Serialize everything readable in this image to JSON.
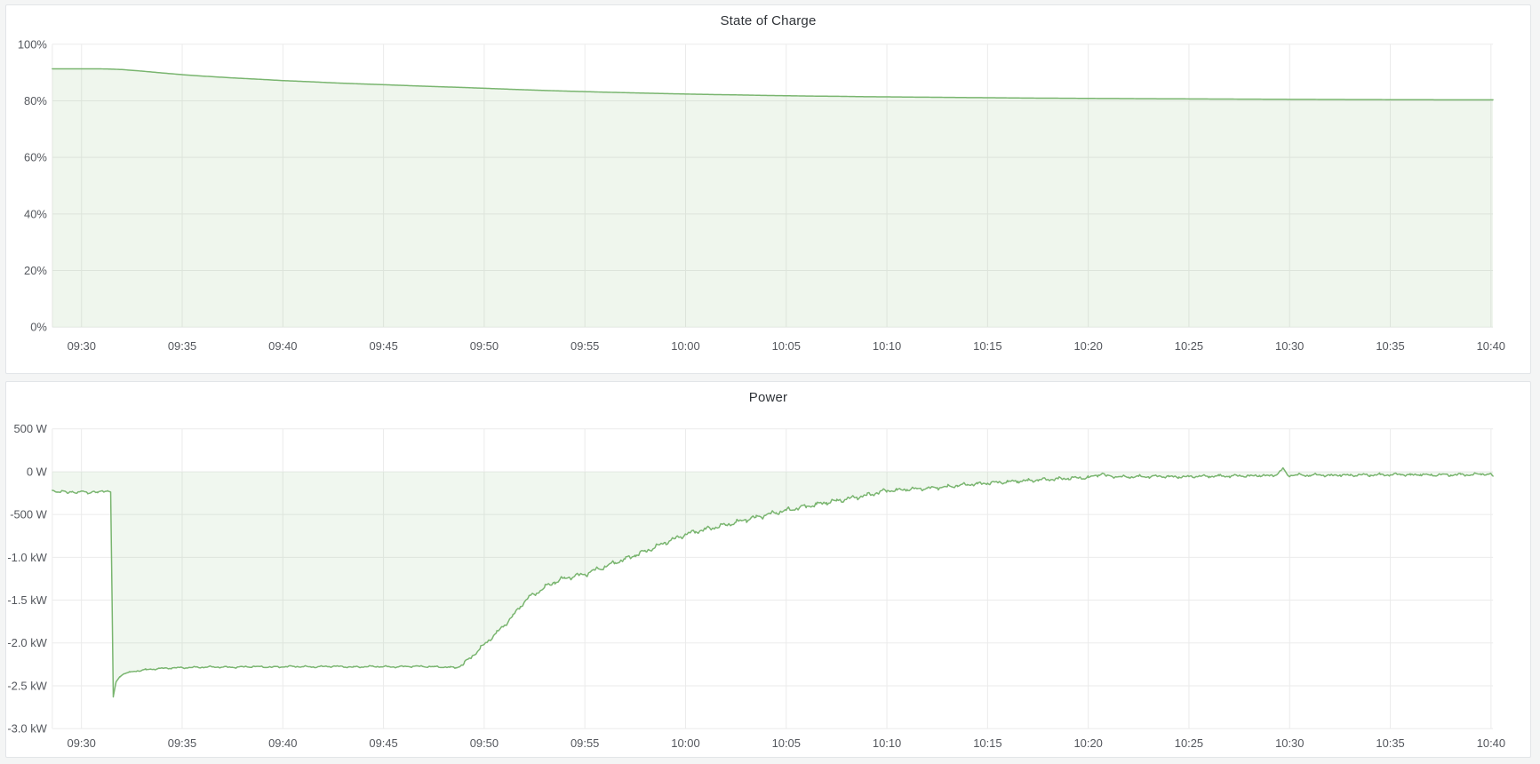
{
  "page": {
    "background_color": "#f4f5f5",
    "panel_background": "#ffffff",
    "grid_color": "#ebebeb",
    "tick_text_color": "#54575d",
    "title_text_color": "#2f3338"
  },
  "chart_data": [
    {
      "type": "area",
      "title": "State of Charge",
      "legend_position": "none",
      "grid": true,
      "x": {
        "unit": "time",
        "domain_minutes": [
          -1.45,
          70.1
        ],
        "tick_minutes": [
          0,
          5,
          10,
          15,
          20,
          25,
          30,
          35,
          40,
          45,
          50,
          55,
          60,
          65,
          70
        ],
        "tick_labels": [
          "09:30",
          "09:35",
          "09:40",
          "09:45",
          "09:50",
          "09:55",
          "10:00",
          "10:05",
          "10:10",
          "10:15",
          "10:20",
          "10:25",
          "10:30",
          "10:35",
          "10:40"
        ]
      },
      "y": {
        "unit": "percent",
        "ylim": [
          0,
          100
        ],
        "ticks": [
          {
            "value": 100,
            "label": "100%"
          },
          {
            "value": 80,
            "label": "80%"
          },
          {
            "value": 60,
            "label": "60%"
          },
          {
            "value": 40,
            "label": "40%"
          },
          {
            "value": 20,
            "label": "20%"
          },
          {
            "value": 0,
            "label": "0%"
          }
        ]
      },
      "series": [
        {
          "name": "State of Charge",
          "color": "#79b56f",
          "fill_color": "rgba(120,181,110,0.12)",
          "baseline_value": 0,
          "points": [
            [
              -1.45,
              91.3
            ],
            [
              0,
              91.3
            ],
            [
              0.8,
              91.3
            ],
            [
              1.3,
              91.25
            ],
            [
              2,
              91.05
            ],
            [
              3,
              90.5
            ],
            [
              4,
              89.85
            ],
            [
              5,
              89.25
            ],
            [
              6,
              88.75
            ],
            [
              7.5,
              88.1
            ],
            [
              9,
              87.55
            ],
            [
              10,
              87.15
            ],
            [
              11.5,
              86.7
            ],
            [
              12.5,
              86.35
            ],
            [
              14,
              85.95
            ],
            [
              15,
              85.7
            ],
            [
              16.5,
              85.3
            ],
            [
              17.5,
              85.05
            ],
            [
              19,
              84.7
            ],
            [
              20.5,
              84.3
            ],
            [
              22,
              83.9
            ],
            [
              23.5,
              83.55
            ],
            [
              25,
              83.25
            ],
            [
              26,
              83.05
            ],
            [
              27.5,
              82.8
            ],
            [
              29,
              82.55
            ],
            [
              30,
              82.4
            ],
            [
              31.5,
              82.2
            ],
            [
              32.5,
              82.1
            ],
            [
              34,
              81.9
            ],
            [
              35,
              81.8
            ],
            [
              36.5,
              81.65
            ],
            [
              37.5,
              81.6
            ],
            [
              39,
              81.45
            ],
            [
              40,
              81.4
            ],
            [
              41.5,
              81.3
            ],
            [
              42.5,
              81.25
            ],
            [
              44,
              81.15
            ],
            [
              45,
              81.1
            ],
            [
              46.5,
              81.0
            ],
            [
              47.5,
              80.95
            ],
            [
              49,
              80.9
            ],
            [
              50,
              80.85
            ],
            [
              51.5,
              80.8
            ],
            [
              52.5,
              80.75
            ],
            [
              54,
              80.7
            ],
            [
              55,
              80.68
            ],
            [
              56.5,
              80.62
            ],
            [
              57.5,
              80.6
            ],
            [
              59,
              80.55
            ],
            [
              60,
              80.52
            ],
            [
              61.5,
              80.48
            ],
            [
              62.5,
              80.45
            ],
            [
              64,
              80.42
            ],
            [
              65,
              80.4
            ],
            [
              66.5,
              80.38
            ],
            [
              67.5,
              80.36
            ],
            [
              69,
              80.34
            ],
            [
              70.1,
              80.33
            ]
          ],
          "noise_segments": []
        }
      ]
    },
    {
      "type": "area",
      "title": "Power",
      "legend_position": "none",
      "grid": true,
      "x": {
        "unit": "time",
        "domain_minutes": [
          -1.45,
          70.1
        ],
        "tick_minutes": [
          0,
          5,
          10,
          15,
          20,
          25,
          30,
          35,
          40,
          45,
          50,
          55,
          60,
          65,
          70
        ],
        "tick_labels": [
          "09:30",
          "09:35",
          "09:40",
          "09:45",
          "09:50",
          "09:55",
          "10:00",
          "10:05",
          "10:10",
          "10:15",
          "10:20",
          "10:25",
          "10:30",
          "10:35",
          "10:40"
        ]
      },
      "y": {
        "unit": "watts",
        "ylim": [
          -3000,
          500
        ],
        "ticks": [
          {
            "value": 500,
            "label": "500 W"
          },
          {
            "value": 0,
            "label": "0 W"
          },
          {
            "value": -500,
            "label": "-500 W"
          },
          {
            "value": -1000,
            "label": "-1.0 kW"
          },
          {
            "value": -1500,
            "label": "-1.5 kW"
          },
          {
            "value": -2000,
            "label": "-2.0 kW"
          },
          {
            "value": -2500,
            "label": "-2.5 kW"
          },
          {
            "value": -3000,
            "label": "-3.0 kW"
          }
        ]
      },
      "series": [
        {
          "name": "Power",
          "color": "#79b56f",
          "fill_color": "rgba(120,181,110,0.11)",
          "baseline_value": 0,
          "points": [
            [
              -1.45,
              -218
            ],
            [
              -1.2,
              -238
            ],
            [
              -0.95,
              -222
            ],
            [
              -0.7,
              -252
            ],
            [
              -0.45,
              -230
            ],
            [
              -0.2,
              -246
            ],
            [
              0.05,
              -228
            ],
            [
              0.3,
              -250
            ],
            [
              0.55,
              -232
            ],
            [
              0.8,
              -246
            ],
            [
              1.05,
              -226
            ],
            [
              1.3,
              -222
            ],
            [
              1.45,
              -238
            ],
            [
              1.52,
              -1500
            ],
            [
              1.58,
              -2630
            ],
            [
              1.72,
              -2455
            ],
            [
              1.9,
              -2395
            ],
            [
              2.1,
              -2360
            ],
            [
              2.4,
              -2340
            ],
            [
              2.8,
              -2325
            ],
            [
              3.2,
              -2312
            ],
            [
              3.8,
              -2300
            ],
            [
              4.5,
              -2292
            ],
            [
              5.5,
              -2286
            ],
            [
              6.5,
              -2280
            ],
            [
              7.5,
              -2284
            ],
            [
              8.5,
              -2276
            ],
            [
              9.5,
              -2282
            ],
            [
              10.5,
              -2274
            ],
            [
              11.5,
              -2280
            ],
            [
              12.5,
              -2272
            ],
            [
              13.5,
              -2282
            ],
            [
              14.5,
              -2274
            ],
            [
              15.5,
              -2280
            ],
            [
              16.5,
              -2272
            ],
            [
              17.5,
              -2278
            ],
            [
              18.3,
              -2284
            ],
            [
              18.6,
              -2288
            ],
            [
              19,
              -2240
            ],
            [
              19.4,
              -2155
            ],
            [
              19.8,
              -2065
            ],
            [
              20.2,
              -1975
            ],
            [
              20.6,
              -1885
            ],
            [
              21,
              -1795
            ],
            [
              21.4,
              -1690
            ],
            [
              21.8,
              -1575
            ],
            [
              22.2,
              -1465
            ],
            [
              22.6,
              -1420
            ],
            [
              23,
              -1350
            ],
            [
              23.5,
              -1290
            ],
            [
              24,
              -1245
            ],
            [
              24.5,
              -1218
            ],
            [
              25,
              -1198
            ],
            [
              25.5,
              -1150
            ],
            [
              26,
              -1110
            ],
            [
              26.5,
              -1062
            ],
            [
              27,
              -1020
            ],
            [
              27.5,
              -975
            ],
            [
              28,
              -930
            ],
            [
              28.5,
              -880
            ],
            [
              29,
              -828
            ],
            [
              29.5,
              -780
            ],
            [
              30,
              -732
            ],
            [
              30.5,
              -700
            ],
            [
              31,
              -672
            ],
            [
              31.5,
              -648
            ],
            [
              32,
              -622
            ],
            [
              32.5,
              -592
            ],
            [
              33,
              -560
            ],
            [
              33.5,
              -532
            ],
            [
              34,
              -505
            ],
            [
              34.5,
              -478
            ],
            [
              35,
              -452
            ],
            [
              35.5,
              -428
            ],
            [
              36,
              -405
            ],
            [
              36.5,
              -382
            ],
            [
              37,
              -360
            ],
            [
              37.5,
              -340
            ],
            [
              38,
              -320
            ],
            [
              38.5,
              -298
            ],
            [
              39,
              -276
            ],
            [
              39.5,
              -246
            ],
            [
              40,
              -222
            ],
            [
              40.5,
              -215
            ],
            [
              41,
              -208
            ],
            [
              41.5,
              -200
            ],
            [
              42,
              -194
            ],
            [
              42.5,
              -186
            ],
            [
              43,
              -176
            ],
            [
              43.5,
              -163
            ],
            [
              44,
              -150
            ],
            [
              44.5,
              -142
            ],
            [
              45,
              -134
            ],
            [
              45.5,
              -126
            ],
            [
              46,
              -118
            ],
            [
              46.5,
              -111
            ],
            [
              47,
              -104
            ],
            [
              47.5,
              -97
            ],
            [
              48,
              -90
            ],
            [
              48.5,
              -84
            ],
            [
              49,
              -78
            ],
            [
              49.5,
              -73
            ],
            [
              50,
              -68
            ],
            [
              50.5,
              -40
            ],
            [
              50.7,
              -18
            ],
            [
              50.9,
              -52
            ],
            [
              51.5,
              -58
            ],
            [
              52,
              -64
            ],
            [
              52.5,
              -55
            ],
            [
              53,
              -60
            ],
            [
              53.5,
              -52
            ],
            [
              54,
              -58
            ],
            [
              54.5,
              -62
            ],
            [
              55,
              -58
            ],
            [
              55.5,
              -52
            ],
            [
              56,
              -56
            ],
            [
              56.5,
              -48
            ],
            [
              57,
              -54
            ],
            [
              57.5,
              -46
            ],
            [
              58,
              -52
            ],
            [
              58.5,
              -44
            ],
            [
              59,
              -50
            ],
            [
              59.4,
              -28
            ],
            [
              59.65,
              38
            ],
            [
              59.9,
              -42
            ],
            [
              60.3,
              -38
            ],
            [
              61,
              -44
            ],
            [
              61.5,
              -36
            ],
            [
              62,
              -46
            ],
            [
              62.5,
              -38
            ],
            [
              63,
              -44
            ],
            [
              63.5,
              -36
            ],
            [
              64,
              -42
            ],
            [
              64.5,
              -34
            ],
            [
              65,
              -38
            ],
            [
              65.5,
              -30
            ],
            [
              66,
              -40
            ],
            [
              66.5,
              -32
            ],
            [
              67,
              -42
            ],
            [
              67.5,
              -34
            ],
            [
              68,
              -40
            ],
            [
              68.5,
              -32
            ],
            [
              69,
              -38
            ],
            [
              69.5,
              -26
            ],
            [
              69.9,
              -30
            ],
            [
              70.1,
              -52
            ]
          ],
          "noise_segments": [
            [
              -1.45,
              1.4,
              14
            ],
            [
              1.4,
              2.6,
              5
            ],
            [
              2.6,
              18.6,
              11
            ],
            [
              18.6,
              23,
              26
            ],
            [
              23,
              40,
              32
            ],
            [
              40,
              50,
              24
            ],
            [
              50,
              70.1,
              18
            ]
          ]
        }
      ]
    }
  ]
}
